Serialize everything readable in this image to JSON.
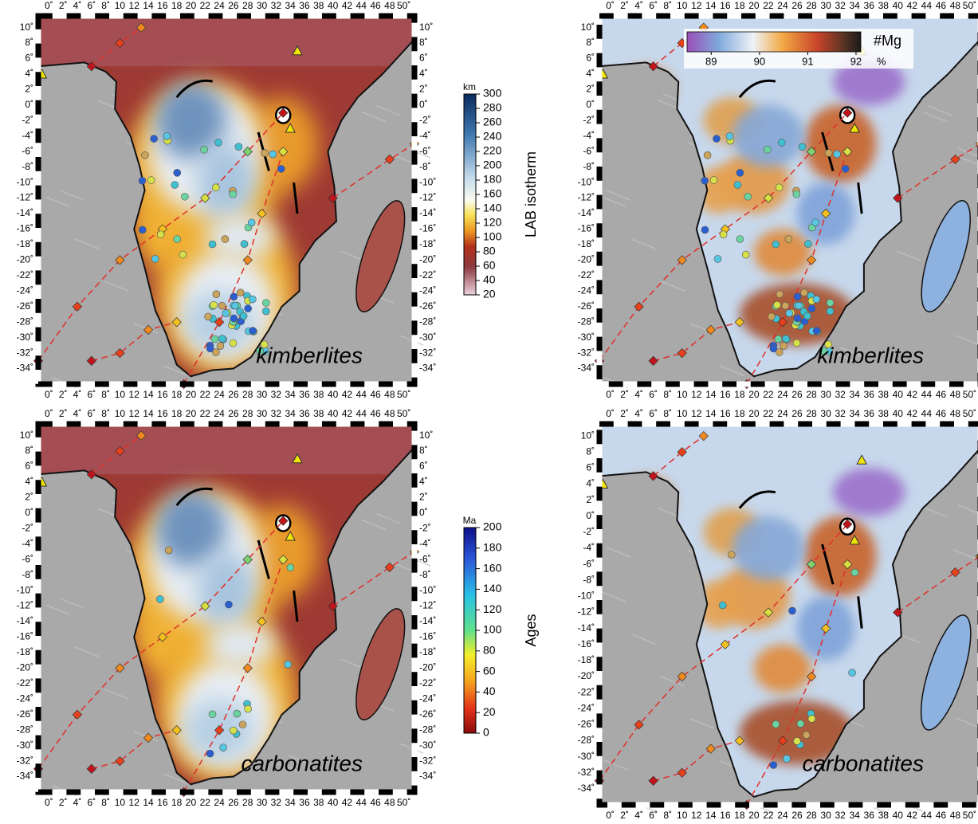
{
  "panels": [
    {
      "label": "kimberlites"
    },
    {
      "label": "kimberlites"
    },
    {
      "label": "carbonatites"
    },
    {
      "label": "carbonatites"
    }
  ],
  "lon_ticks": [
    "0˚",
    "2˚",
    "4˚",
    "6˚",
    "8˚",
    "10",
    "12",
    "14",
    "16",
    "18",
    "20",
    "22",
    "24",
    "26",
    "28",
    "30",
    "32",
    "34",
    "36",
    "38",
    "40",
    "42",
    "44",
    "46",
    "48",
    "50˚"
  ],
  "lat_ticks": [
    "10˚",
    "8˚",
    "6˚",
    "4˚",
    "2˚",
    "0˚",
    "-2˚",
    "-4˚",
    "-6˚",
    "-8˚",
    "-10˚",
    "-12˚",
    "-14˚",
    "-16˚",
    "-18˚",
    "-20˚",
    "-22˚",
    "-24˚",
    "-26˚",
    "-28˚",
    "-30˚",
    "-32˚",
    "-34˚"
  ],
  "colorbars": {
    "lab": {
      "unit": "km",
      "title": "LAB isotherm",
      "range": [
        20,
        300
      ],
      "ticks": [
        300,
        280,
        260,
        240,
        220,
        200,
        180,
        160,
        140,
        120,
        100,
        80,
        60,
        40,
        20
      ]
    },
    "ages": {
      "unit": "Ma",
      "title": "Ages",
      "range": [
        0,
        200
      ],
      "ticks": [
        200,
        180,
        160,
        140,
        120,
        100,
        80,
        60,
        40,
        20,
        0
      ]
    },
    "mg": {
      "title": "#Mg",
      "unit": "%",
      "range": [
        88.5,
        92.1
      ],
      "ticks": [
        89,
        90,
        91,
        92
      ]
    }
  }
}
